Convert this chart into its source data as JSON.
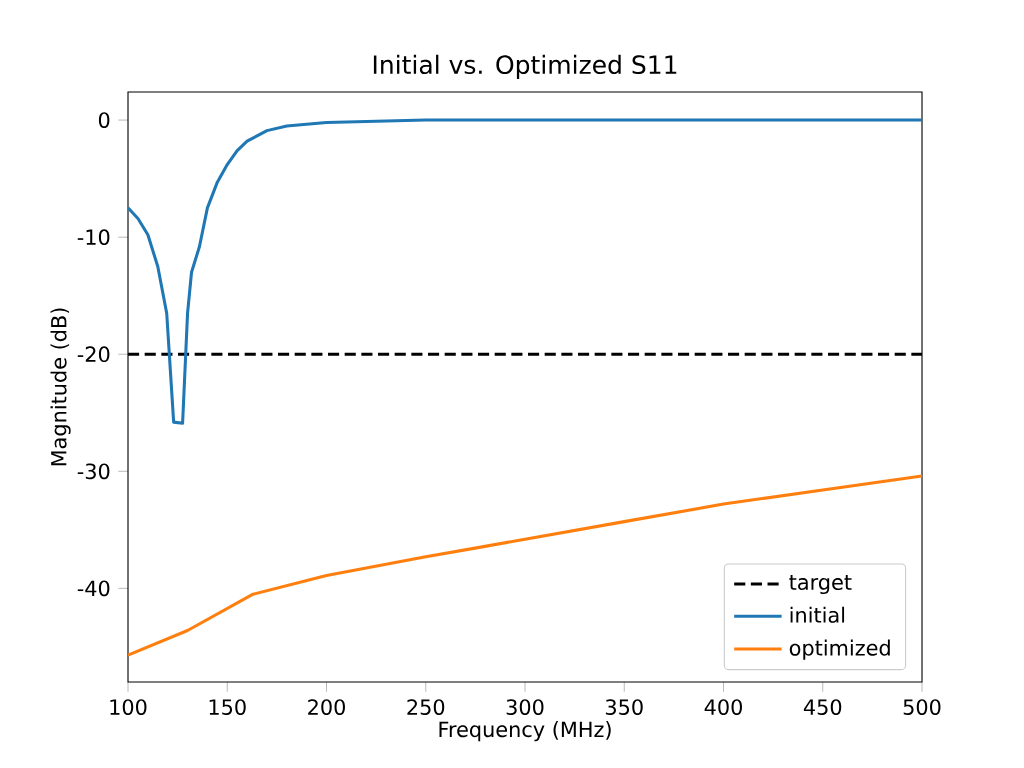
{
  "chart_data": {
    "type": "line",
    "title": "Initial vs. Optimized S11",
    "xlabel": "Frequency (MHz)",
    "ylabel": "Magnitude (dB)",
    "xlim": [
      100,
      500
    ],
    "ylim": [
      -48,
      2.4
    ],
    "xticks": [
      100,
      150,
      200,
      250,
      300,
      350,
      400,
      450,
      500
    ],
    "yticks": [
      -40,
      -30,
      -20,
      -10,
      0
    ],
    "legend": "bottom right",
    "grid": false,
    "line_style": "solid",
    "marker": "none",
    "ref_lines": [
      {
        "axis": "y",
        "value": -20,
        "label": "target",
        "color": "#000000",
        "line_style": "dashed"
      }
    ],
    "series": [
      {
        "name": "initial",
        "color": "#1f77b4",
        "x": [
          100,
          105,
          110,
          115,
          119.5,
          123,
          127.5,
          130,
          132,
          136,
          140,
          145,
          150,
          155,
          160,
          170,
          180,
          200,
          250,
          300,
          400,
          500
        ],
        "values": [
          -7.5,
          -8.4,
          -9.8,
          -12.5,
          -16.5,
          -25.8,
          -25.9,
          -16.5,
          -13,
          -10.8,
          -7.5,
          -5.3,
          -3.8,
          -2.6,
          -1.8,
          -0.9,
          -0.5,
          -0.2,
          0,
          0,
          0,
          0
        ]
      },
      {
        "name": "optimized",
        "color": "#ff7f0e",
        "x": [
          100,
          130,
          163,
          200,
          250,
          277,
          300,
          350,
          400,
          450,
          500
        ],
        "values": [
          -45.7,
          -43.6,
          -40.5,
          -38.9,
          -37.3,
          -36.5,
          -35.8,
          -34.3,
          -32.8,
          -31.6,
          -30.4
        ]
      }
    ]
  }
}
